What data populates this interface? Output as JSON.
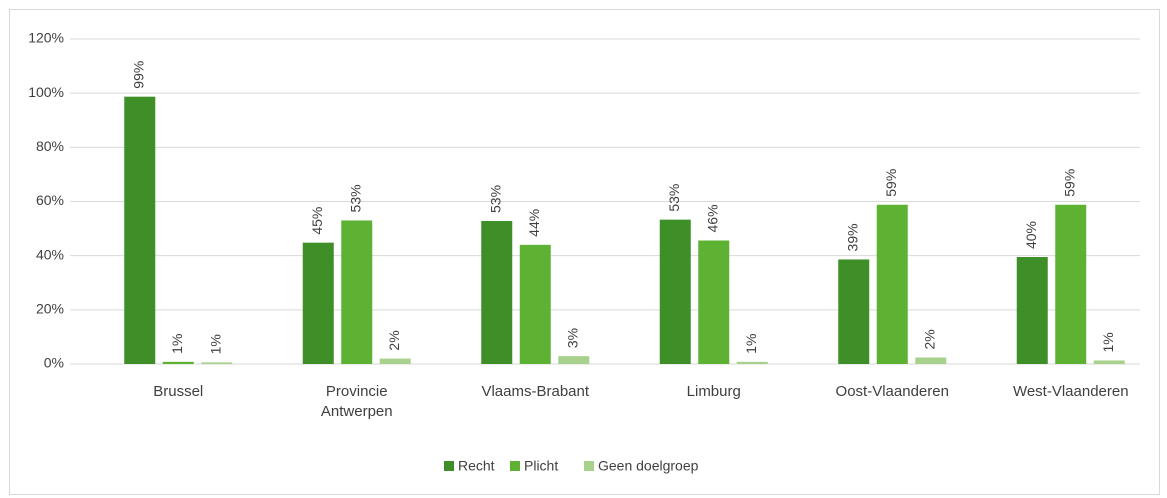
{
  "chart_data": {
    "type": "bar",
    "categories": [
      "Brussel",
      "Provincie Antwerpen",
      "Vlaams-Brabant",
      "Limburg",
      "Oost-Vlaanderen",
      "West-Vlaanderen"
    ],
    "series": [
      {
        "name": "Recht",
        "color": "#3f8f29",
        "values": [
          98.7,
          44.8,
          52.8,
          53.3,
          38.6,
          39.5
        ],
        "value_labels": [
          "99%",
          "45%",
          "53%",
          "53%",
          "39%",
          "40%"
        ]
      },
      {
        "name": "Plicht",
        "color": "#5db233",
        "values": [
          0.8,
          53.0,
          44.0,
          45.6,
          58.8,
          58.8
        ],
        "value_labels": [
          "1%",
          "53%",
          "44%",
          "46%",
          "59%",
          "59%"
        ]
      },
      {
        "name": "Geen doelgroep",
        "color": "#a9d18e",
        "values": [
          0.6,
          2.0,
          2.9,
          0.8,
          2.4,
          1.3
        ],
        "value_labels": [
          "1%",
          "2%",
          "3%",
          "1%",
          "2%",
          "1%"
        ]
      }
    ],
    "ylim": [
      0,
      120
    ],
    "yticks": [
      {
        "value": 0,
        "label": "0%"
      },
      {
        "value": 20,
        "label": "20%"
      },
      {
        "value": 40,
        "label": "40%"
      },
      {
        "value": 60,
        "label": "60%"
      },
      {
        "value": 80,
        "label": "80%"
      },
      {
        "value": 100,
        "label": "100%"
      },
      {
        "value": 120,
        "label": "120%"
      }
    ],
    "grid": true,
    "legend": "bottom"
  }
}
